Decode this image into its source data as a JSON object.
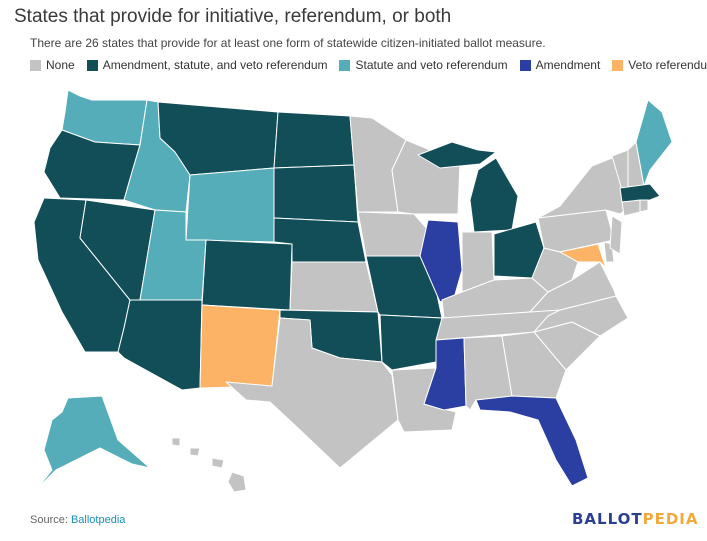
{
  "title": "States that provide for initiative, referendum, or both",
  "subtitle": "There are 26 states that provide for at least one form of statewide citizen-initiated ballot measure.",
  "legend": [
    {
      "label": "None",
      "color": "#c3c3c3"
    },
    {
      "label": "Amendment, statute, and veto referendum",
      "color": "#124e58"
    },
    {
      "label": "Statute and veto referendum",
      "color": "#55adb9"
    },
    {
      "label": "Amendment",
      "color": "#2b3ea1"
    },
    {
      "label": "Veto referendum",
      "color": "#fdb366"
    }
  ],
  "source": {
    "prefix": "Source: ",
    "name": "Ballotpedia"
  },
  "brand": {
    "part1": "BALLOT",
    "part2": "PEDIA",
    "color1": "#2b3e8f",
    "color2": "#f2a93b"
  },
  "states": {
    "none": [
      "Minnesota",
      "Wisconsin",
      "Iowa",
      "Kansas",
      "Texas",
      "Louisiana",
      "Indiana",
      "Kentucky",
      "Tennessee",
      "Alabama",
      "Georgia",
      "South Carolina",
      "North Carolina",
      "Virginia",
      "West Virginia",
      "Pennsylvania",
      "New York",
      "Vermont",
      "New Hampshire",
      "Connecticut",
      "Rhode Island",
      "New Jersey",
      "Delaware",
      "Hawaii"
    ],
    "amendment_statute_veto": [
      "Oregon",
      "California",
      "Nevada",
      "Montana",
      "North Dakota",
      "South Dakota",
      "Nebraska",
      "Colorado",
      "Arizona",
      "Oklahoma",
      "Arkansas",
      "Missouri",
      "Michigan",
      "Ohio",
      "Massachusetts"
    ],
    "statute_veto": [
      "Washington",
      "Idaho",
      "Wyoming",
      "Utah",
      "Alaska",
      "Maine"
    ],
    "amendment": [
      "Illinois",
      "Mississippi",
      "Florida"
    ],
    "veto_referendum": [
      "New Mexico",
      "Maryland"
    ]
  }
}
